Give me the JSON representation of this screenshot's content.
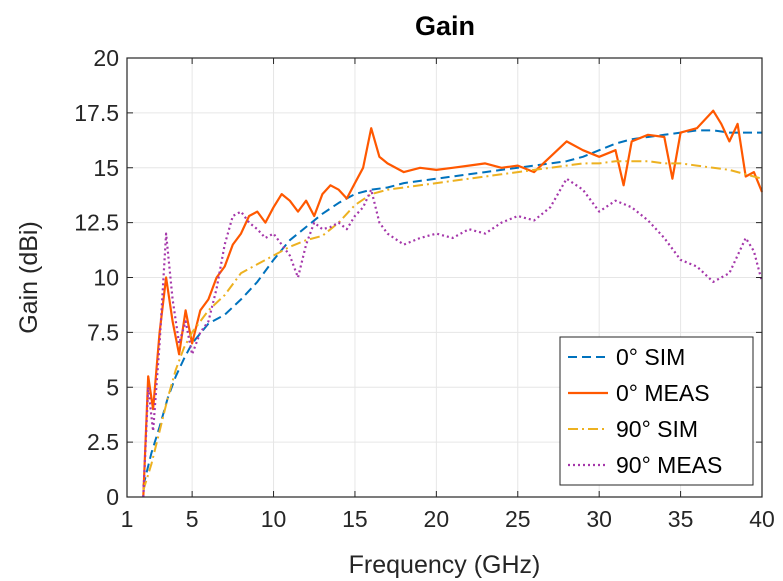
{
  "chart_data": {
    "type": "line",
    "title": "Gain",
    "xlabel": "Frequency (GHz)",
    "ylabel": "Gain (dBi)",
    "xlim": [
      1,
      40
    ],
    "ylim": [
      0,
      20
    ],
    "x_ticks": [
      1,
      5,
      10,
      15,
      20,
      25,
      30,
      35,
      40
    ],
    "x_tick_labels": [
      "1",
      "5",
      "10",
      "15",
      "20",
      "25",
      "30",
      "35",
      "40"
    ],
    "y_ticks": [
      0,
      2.5,
      5,
      7.5,
      10,
      12.5,
      15,
      17.5,
      20
    ],
    "y_tick_labels": [
      "0",
      "2.5",
      "5",
      "7.5",
      "10",
      "12.5",
      "15",
      "17.5",
      "20"
    ],
    "grid": true,
    "legend_position": "bottom-right",
    "series": [
      {
        "name": "0° SIM",
        "color": "#0072BD",
        "style": "dashed",
        "x": [
          2,
          2.5,
          3,
          3.5,
          4,
          4.5,
          5,
          6,
          7,
          8,
          9,
          10,
          11,
          12,
          13,
          14,
          15,
          16,
          17,
          18,
          19,
          20,
          21,
          22,
          23,
          24,
          25,
          26,
          27,
          28,
          29,
          30,
          31,
          32,
          33,
          34,
          35,
          36,
          37,
          38,
          39,
          40
        ],
        "y": [
          0.5,
          2.0,
          3.2,
          4.5,
          5.5,
          6.3,
          7.0,
          7.9,
          8.3,
          9.0,
          9.8,
          10.8,
          11.7,
          12.3,
          12.9,
          13.4,
          13.8,
          14.0,
          14.1,
          14.3,
          14.4,
          14.5,
          14.6,
          14.7,
          14.8,
          14.9,
          15.0,
          15.1,
          15.2,
          15.3,
          15.5,
          15.8,
          16.1,
          16.3,
          16.4,
          16.5,
          16.6,
          16.7,
          16.7,
          16.6,
          16.6,
          16.6
        ]
      },
      {
        "name": "0° MEAS",
        "color": "#FF5800",
        "style": "solid",
        "x": [
          2,
          2.3,
          2.6,
          3,
          3.4,
          3.8,
          4.2,
          4.6,
          5,
          5.5,
          6,
          6.5,
          7,
          7.5,
          8,
          8.5,
          9,
          9.5,
          10,
          10.5,
          11,
          11.5,
          12,
          12.5,
          13,
          13.5,
          14,
          14.5,
          15,
          15.5,
          16,
          16.5,
          17,
          18,
          19,
          20,
          21,
          22,
          23,
          24,
          25,
          26,
          27,
          28,
          29,
          30,
          31,
          31.5,
          32,
          33,
          34,
          34.5,
          35,
          36,
          37,
          37.5,
          38,
          38.5,
          39,
          39.5,
          40
        ],
        "y": [
          0,
          5.5,
          4.0,
          7.5,
          10.0,
          8.0,
          6.5,
          8.5,
          7.0,
          8.5,
          9.0,
          10.0,
          10.5,
          11.5,
          12.0,
          12.8,
          13.0,
          12.5,
          13.2,
          13.8,
          13.5,
          13.0,
          13.5,
          12.8,
          13.8,
          14.2,
          14.0,
          13.6,
          14.3,
          15.0,
          16.8,
          15.5,
          15.2,
          14.8,
          15.0,
          14.9,
          15.0,
          15.1,
          15.2,
          15.0,
          15.1,
          14.8,
          15.5,
          16.2,
          15.8,
          15.5,
          15.8,
          14.2,
          16.2,
          16.5,
          16.4,
          14.5,
          16.6,
          16.8,
          17.6,
          17.0,
          16.2,
          17.0,
          14.6,
          14.8,
          13.9
        ]
      },
      {
        "name": "90° SIM",
        "color": "#EDB120",
        "style": "dashdot",
        "x": [
          2,
          2.5,
          3,
          3.5,
          4,
          4.5,
          5,
          6,
          7,
          8,
          9,
          10,
          11,
          12,
          13,
          14,
          15,
          16,
          17,
          18,
          19,
          20,
          21,
          22,
          23,
          24,
          25,
          26,
          27,
          28,
          29,
          30,
          31,
          32,
          33,
          34,
          35,
          36,
          37,
          38,
          39,
          40
        ],
        "y": [
          0.3,
          1.5,
          3.0,
          4.5,
          5.8,
          6.8,
          7.5,
          8.5,
          9.2,
          10.2,
          10.6,
          11.0,
          11.4,
          11.7,
          11.9,
          12.5,
          13.3,
          13.8,
          14.0,
          14.1,
          14.2,
          14.3,
          14.4,
          14.5,
          14.6,
          14.7,
          14.8,
          14.9,
          15.0,
          15.1,
          15.2,
          15.2,
          15.3,
          15.3,
          15.3,
          15.2,
          15.2,
          15.1,
          15.0,
          14.9,
          14.7,
          14.5
        ]
      },
      {
        "name": "90° MEAS",
        "color": "#A537AA",
        "style": "dotted",
        "x": [
          2,
          2.3,
          2.6,
          3,
          3.4,
          3.8,
          4.2,
          4.6,
          5,
          5.5,
          6,
          6.5,
          7,
          7.5,
          8,
          8.5,
          9,
          9.5,
          10,
          10.5,
          11,
          11.5,
          12,
          12.5,
          13,
          13.5,
          14,
          14.5,
          15,
          15.5,
          16,
          16.5,
          17,
          18,
          19,
          20,
          21,
          22,
          23,
          24,
          25,
          26,
          27,
          28,
          29,
          30,
          31,
          32,
          33,
          34,
          35,
          36,
          37,
          38,
          39,
          39.5,
          40
        ],
        "y": [
          0,
          5.0,
          3.0,
          7.0,
          12.0,
          9.0,
          7.0,
          8.0,
          6.5,
          7.5,
          8.0,
          9.5,
          11.5,
          12.8,
          13.0,
          12.5,
          12.2,
          11.8,
          12.0,
          11.5,
          11.0,
          10.0,
          11.5,
          12.5,
          12.2,
          12.3,
          12.5,
          12.2,
          12.8,
          13.2,
          14.0,
          12.5,
          12.0,
          11.5,
          11.8,
          12.0,
          11.8,
          12.2,
          12.0,
          12.5,
          12.8,
          12.6,
          13.2,
          14.5,
          14.0,
          13.0,
          13.5,
          13.2,
          12.6,
          11.8,
          10.8,
          10.5,
          9.8,
          10.2,
          11.8,
          11.2,
          9.8
        ]
      }
    ]
  }
}
